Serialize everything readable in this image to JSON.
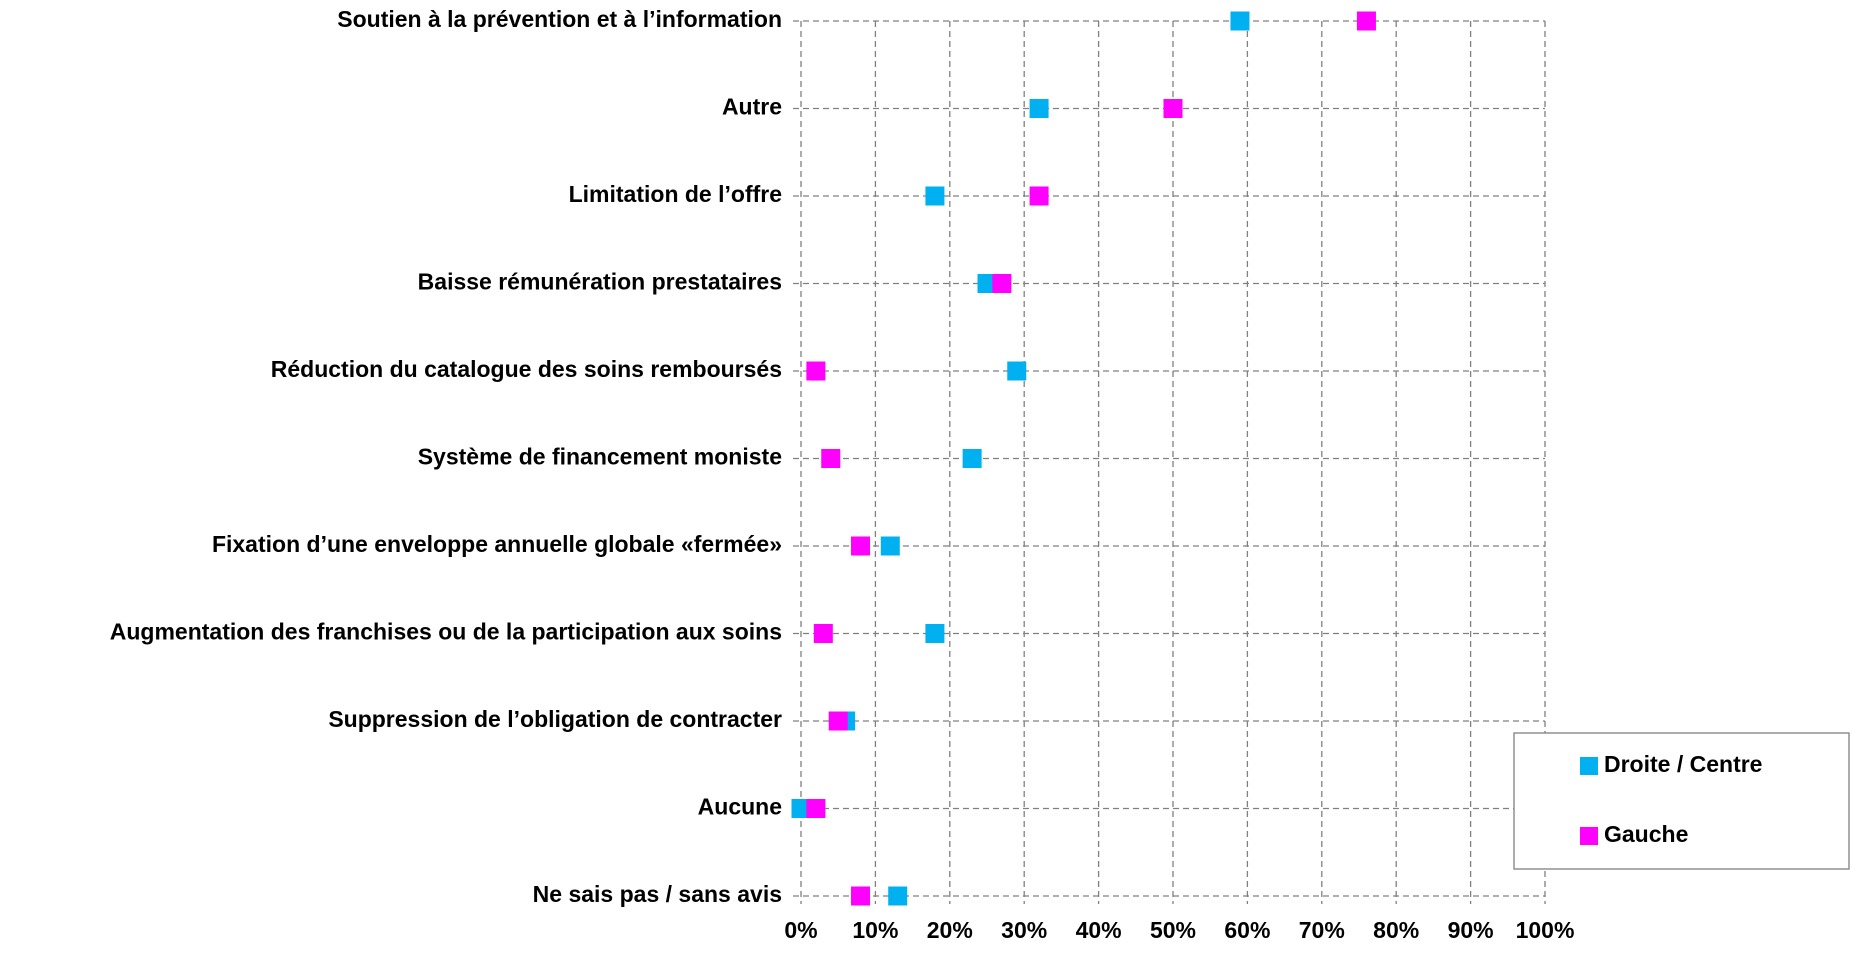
{
  "chart_data": {
    "type": "dot",
    "categories": [
      "Soutien à la prévention et à l’information",
      "Autre",
      "Limitation de l’offre",
      "Baisse rémunération prestataires",
      "Réduction du catalogue des soins remboursés",
      "Système de financement moniste",
      "Fixation d’une enveloppe annuelle globale «fermée»",
      "Augmentation des franchises ou de la participation aux soins",
      "Suppression de l’obligation de contracter",
      "Aucune",
      "Ne sais pas / sans avis"
    ],
    "series": [
      {
        "name": "Droite / Centre",
        "color": "#00b0f0",
        "values": [
          59,
          32,
          18,
          25,
          29,
          23,
          12,
          18,
          6,
          0,
          13
        ]
      },
      {
        "name": "Gauche",
        "color": "#ff00ff",
        "values": [
          76,
          50,
          32,
          27,
          2,
          4,
          8,
          3,
          5,
          2,
          8
        ]
      }
    ],
    "xlim": [
      0,
      100
    ],
    "xticks": [
      {
        "value": 0,
        "label": "0%"
      },
      {
        "value": 10,
        "label": "10%"
      },
      {
        "value": 20,
        "label": "20%"
      },
      {
        "value": 30,
        "label": "30%"
      },
      {
        "value": 40,
        "label": "40%"
      },
      {
        "value": 50,
        "label": "50%"
      },
      {
        "value": 60,
        "label": "60%"
      },
      {
        "value": 70,
        "label": "70%"
      },
      {
        "value": 80,
        "label": "80%"
      },
      {
        "value": 90,
        "label": "90%"
      },
      {
        "value": 100,
        "label": "100%"
      }
    ],
    "grid": true,
    "legend": "lower right"
  }
}
